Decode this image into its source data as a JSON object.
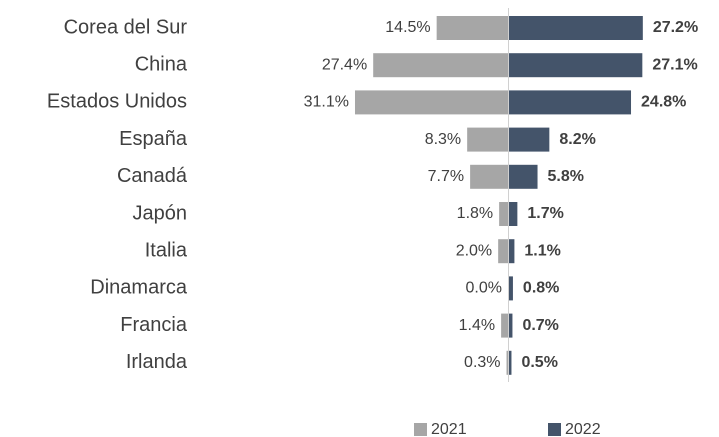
{
  "chart_data": {
    "type": "butterfly",
    "categories": [
      "Corea del Sur",
      "China",
      "Estados Unidos",
      "España",
      "Canadá",
      "Japón",
      "Italia",
      "Dinamarca",
      "Francia",
      "Irlanda"
    ],
    "series": [
      {
        "name": "2021",
        "color": "#a6a6a6",
        "values": [
          14.5,
          27.4,
          31.1,
          8.3,
          7.7,
          1.8,
          2.0,
          0.0,
          1.4,
          0.3
        ],
        "value_labels": [
          "14.5%",
          "27.4%",
          "31.1%",
          "8.3%",
          "7.7%",
          "1.8%",
          "2.0%",
          "0.0%",
          "1.4%",
          "0.3%"
        ]
      },
      {
        "name": "2022",
        "color": "#44546a",
        "values": [
          27.2,
          27.1,
          24.8,
          8.2,
          5.8,
          1.7,
          1.1,
          0.8,
          0.7,
          0.5
        ],
        "value_labels": [
          "27.2%",
          "27.1%",
          "24.8%",
          "8.2%",
          "5.8%",
          "1.7%",
          "1.1%",
          "0.8%",
          "0.7%",
          "0.5%"
        ]
      }
    ]
  }
}
